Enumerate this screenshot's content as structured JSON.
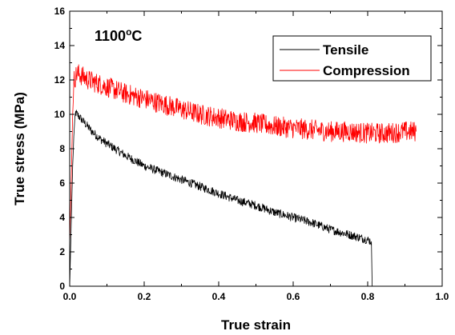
{
  "chart_data": {
    "type": "line",
    "xlabel": "True strain",
    "ylabel": "True stress (MPa)",
    "xlim": [
      0.0,
      1.0
    ],
    "ylim": [
      0,
      16
    ],
    "x_ticks": [
      0.0,
      0.2,
      0.4,
      0.6,
      0.8,
      1.0
    ],
    "x_tick_labels": [
      "0.0",
      "0.2",
      "0.4",
      "0.6",
      "0.8",
      "1.0"
    ],
    "y_ticks": [
      0,
      2,
      4,
      6,
      8,
      10,
      12,
      14,
      16
    ],
    "y_tick_labels": [
      "0",
      "2",
      "4",
      "6",
      "8",
      "10",
      "12",
      "14",
      "16"
    ],
    "annotation": {
      "base": "1100",
      "sup": "o",
      "unit": "C"
    },
    "legend_position": "top-right",
    "grid": false,
    "series": [
      {
        "name": "Tensile",
        "color": "#000000",
        "noise": 0.25,
        "points": [
          [
            0.0,
            0.0
          ],
          [
            0.004,
            3.5
          ],
          [
            0.008,
            7.0
          ],
          [
            0.012,
            9.2
          ],
          [
            0.016,
            10.1
          ],
          [
            0.02,
            10.0
          ],
          [
            0.04,
            9.5
          ],
          [
            0.06,
            9.0
          ],
          [
            0.08,
            8.6
          ],
          [
            0.1,
            8.3
          ],
          [
            0.15,
            7.6
          ],
          [
            0.2,
            7.0
          ],
          [
            0.25,
            6.6
          ],
          [
            0.3,
            6.2
          ],
          [
            0.35,
            5.8
          ],
          [
            0.4,
            5.4
          ],
          [
            0.45,
            5.0
          ],
          [
            0.5,
            4.7
          ],
          [
            0.55,
            4.3
          ],
          [
            0.6,
            4.0
          ],
          [
            0.65,
            3.7
          ],
          [
            0.7,
            3.3
          ],
          [
            0.75,
            3.0
          ],
          [
            0.8,
            2.7
          ],
          [
            0.81,
            2.6
          ],
          [
            0.812,
            0.0
          ]
        ]
      },
      {
        "name": "Compression",
        "color": "#ff0000",
        "noise": 0.6,
        "points": [
          [
            0.0,
            2.5
          ],
          [
            0.004,
            6.0
          ],
          [
            0.008,
            10.0
          ],
          [
            0.012,
            12.0
          ],
          [
            0.02,
            12.4
          ],
          [
            0.05,
            12.0
          ],
          [
            0.1,
            11.6
          ],
          [
            0.15,
            11.2
          ],
          [
            0.2,
            10.9
          ],
          [
            0.25,
            10.6
          ],
          [
            0.3,
            10.3
          ],
          [
            0.35,
            10.0
          ],
          [
            0.4,
            9.8
          ],
          [
            0.45,
            9.6
          ],
          [
            0.5,
            9.5
          ],
          [
            0.55,
            9.3
          ],
          [
            0.6,
            9.2
          ],
          [
            0.65,
            9.1
          ],
          [
            0.7,
            9.0
          ],
          [
            0.75,
            9.0
          ],
          [
            0.8,
            8.9
          ],
          [
            0.85,
            8.9
          ],
          [
            0.9,
            9.0
          ],
          [
            0.93,
            9.0
          ]
        ]
      }
    ]
  }
}
